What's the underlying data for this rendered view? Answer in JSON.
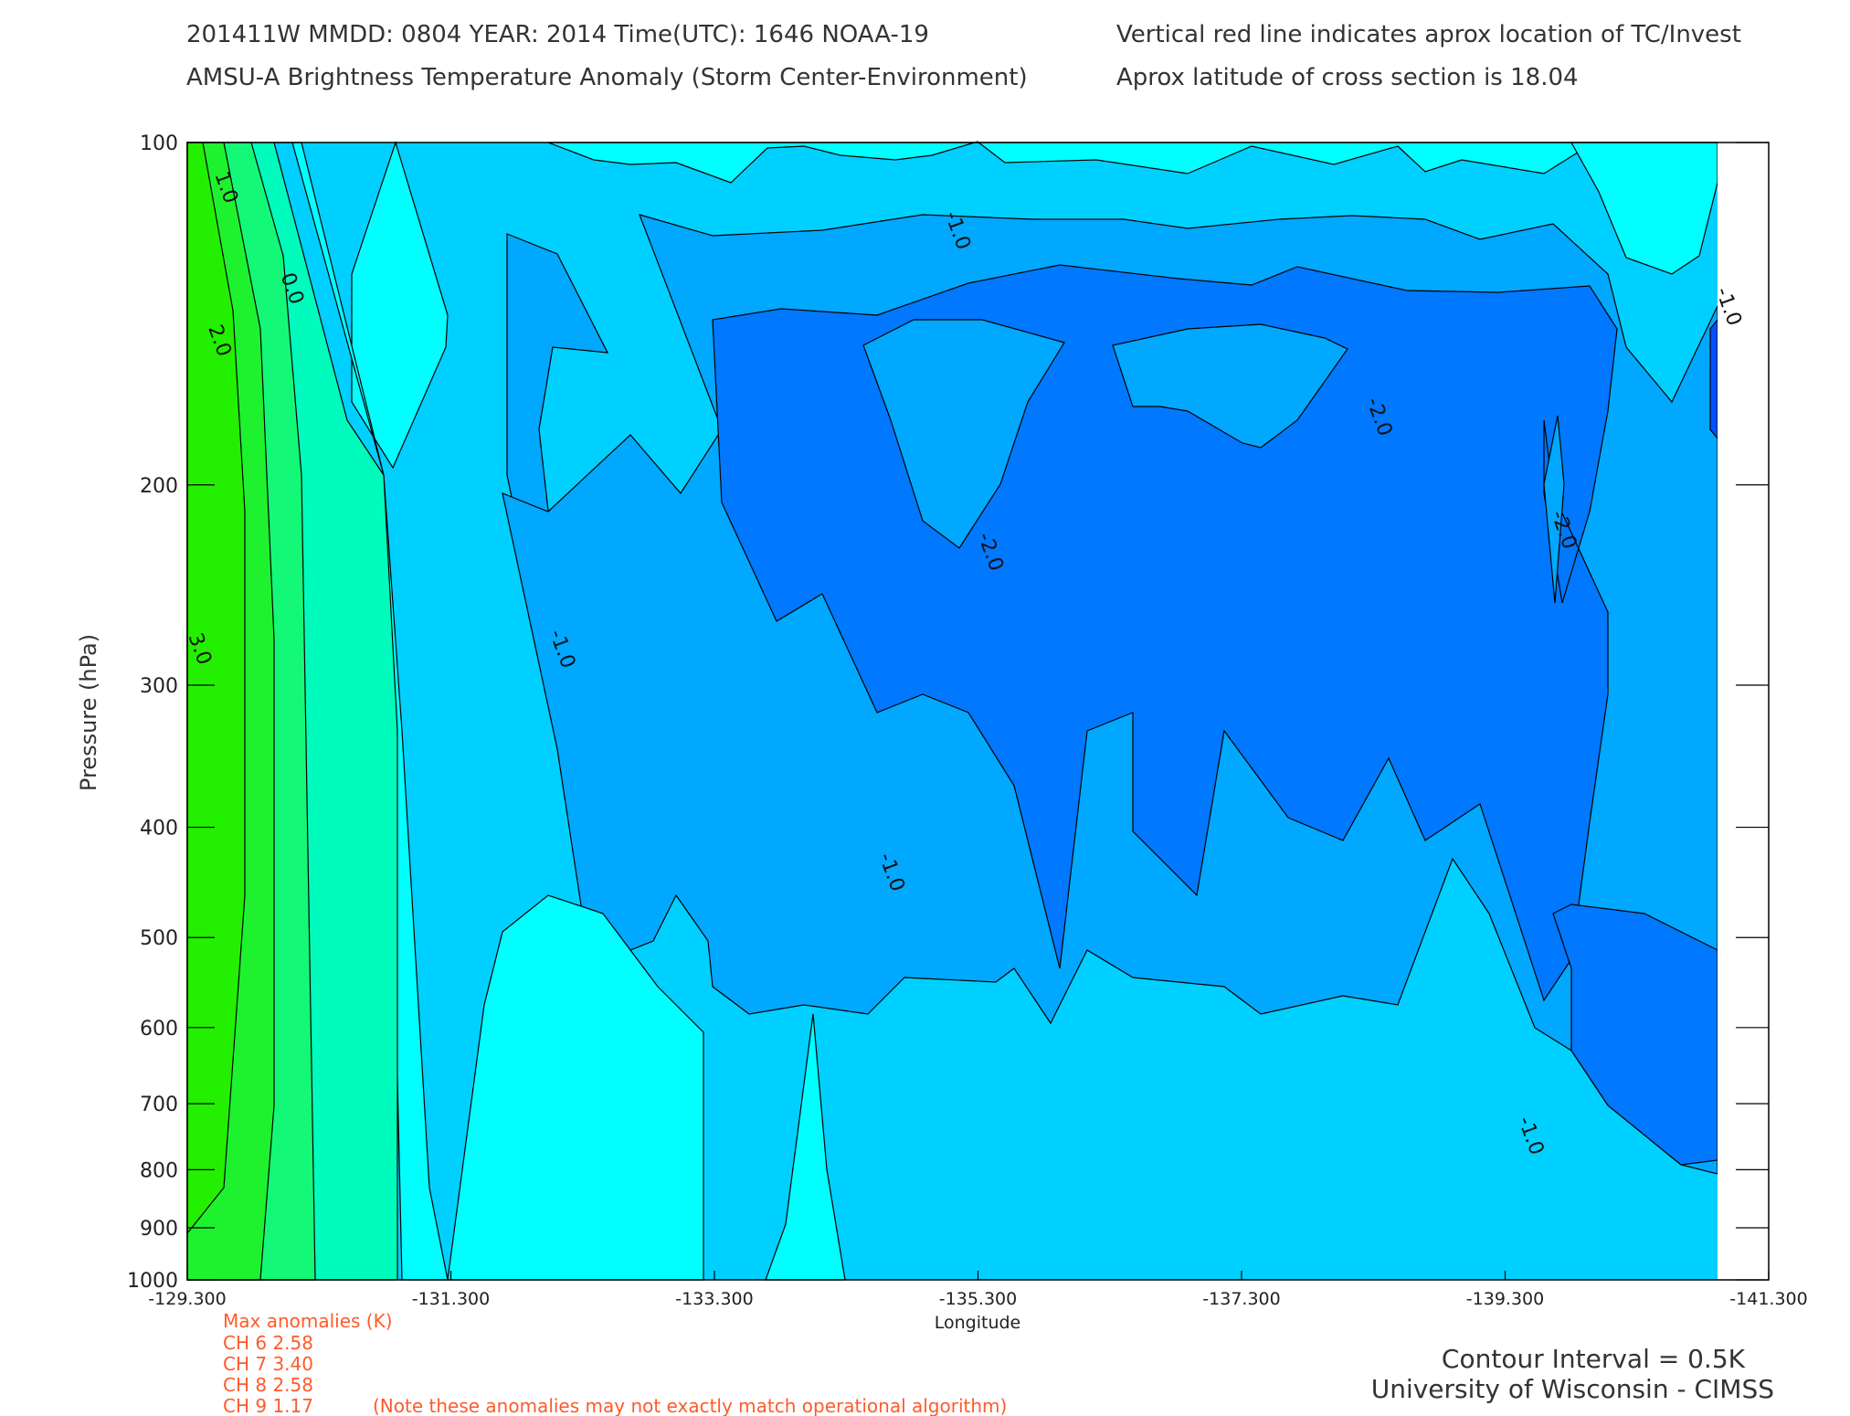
{
  "header": {
    "line1": "201411W  MMDD: 0804 YEAR: 2014 Time(UTC): 1646 NOAA-19",
    "line2": "AMSU-A Brightness Temperature Anomaly (Storm Center-Environment)",
    "right1": "Vertical red line indicates aprox location of TC/Invest",
    "right2": "Aprox latitude of cross section is 18.04"
  },
  "chart_data": {
    "type": "heatmap",
    "subtype": "filled-contour cross section",
    "xlabel": "Longitude",
    "ylabel": "Pressure (hPa)",
    "xlim": [
      -129.3,
      -141.3
    ],
    "ylim": [
      1000,
      100
    ],
    "yscale": "log",
    "x_ticks": [
      "-129.300",
      "-131.300",
      "-133.300",
      "-135.300",
      "-137.300",
      "-139.300",
      "-141.300"
    ],
    "y_ticks": [
      "100",
      "200",
      "300",
      "400",
      "500",
      "600",
      "700",
      "800",
      "900",
      "1000"
    ],
    "contour_interval_K": 0.5,
    "contour_labels": [
      {
        "text": "1.0",
        "lon": -129.55,
        "p": 110
      },
      {
        "text": "0.0",
        "lon": -130.05,
        "p": 135
      },
      {
        "text": "2.0",
        "lon": -129.5,
        "p": 150
      },
      {
        "text": "3.0",
        "lon": -129.35,
        "p": 280
      },
      {
        "text": "-1.0",
        "lon": -135.1,
        "p": 120
      },
      {
        "text": "-1.0",
        "lon": -132.1,
        "p": 280
      },
      {
        "text": "-1.0",
        "lon": -134.6,
        "p": 440
      },
      {
        "text": "-2.0",
        "lon": -135.35,
        "p": 230
      },
      {
        "text": "-2.0",
        "lon": -138.3,
        "p": 175
      },
      {
        "text": "-2.0",
        "lon": -139.7,
        "p": 220
      },
      {
        "text": "-1.0",
        "lon": -140.95,
        "p": 140
      },
      {
        "text": "-1.0",
        "lon": -139.45,
        "p": 750
      }
    ],
    "colors": {
      "pos3": "#22f000",
      "pos2": "#1ef22e",
      "pos1": "#14f878",
      "pos0": "#00fcbc",
      "neg0": "#00ffff",
      "neg1": "#00d0ff",
      "neg15": "#00a8ff",
      "neg2": "#0078ff",
      "neg25": "#0050ff"
    },
    "grid": false,
    "legend": "none"
  },
  "anomalies": {
    "title": "Max anomalies (K)",
    "rows": [
      "CH 6  2.58",
      "CH 7  3.40",
      "CH 8  2.58",
      "CH 9  1.17"
    ],
    "note": "(Note these anomalies may not exactly match operational algorithm)"
  },
  "footer": {
    "interval": "Contour Interval = 0.5K",
    "credit": "University of Wisconsin - CIMSS"
  }
}
